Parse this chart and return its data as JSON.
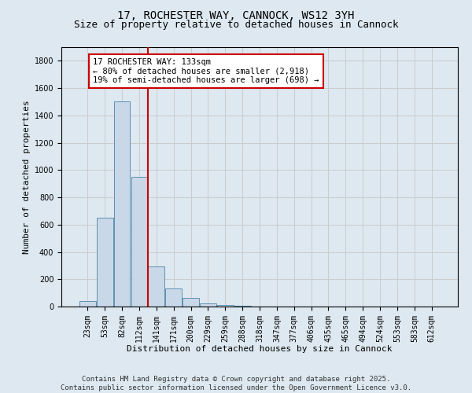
{
  "title_line1": "17, ROCHESTER WAY, CANNOCK, WS12 3YH",
  "title_line2": "Size of property relative to detached houses in Cannock",
  "xlabel": "Distribution of detached houses by size in Cannock",
  "ylabel": "Number of detached properties",
  "categories": [
    "23sqm",
    "53sqm",
    "82sqm",
    "112sqm",
    "141sqm",
    "171sqm",
    "200sqm",
    "229sqm",
    "259sqm",
    "288sqm",
    "318sqm",
    "347sqm",
    "377sqm",
    "406sqm",
    "435sqm",
    "465sqm",
    "494sqm",
    "524sqm",
    "553sqm",
    "583sqm",
    "612sqm"
  ],
  "values": [
    40,
    650,
    1500,
    950,
    295,
    130,
    65,
    25,
    10,
    5,
    0,
    0,
    0,
    0,
    0,
    0,
    0,
    0,
    0,
    0,
    0
  ],
  "bar_color": "#c8d8e8",
  "bar_edgecolor": "#6090b0",
  "vline_color": "#cc0000",
  "annotation_text": "17 ROCHESTER WAY: 133sqm\n← 80% of detached houses are smaller (2,918)\n19% of semi-detached houses are larger (698) →",
  "annotation_box_color": "#ffffff",
  "annotation_box_edgecolor": "#cc0000",
  "ylim": [
    0,
    1900
  ],
  "yticks": [
    0,
    200,
    400,
    600,
    800,
    1000,
    1200,
    1400,
    1600,
    1800
  ],
  "grid_color": "#cccccc",
  "background_color": "#dde8f0",
  "footer_line1": "Contains HM Land Registry data © Crown copyright and database right 2025.",
  "footer_line2": "Contains public sector information licensed under the Open Government Licence v3.0.",
  "title_fontsize": 10,
  "subtitle_fontsize": 9,
  "axis_label_fontsize": 8,
  "tick_fontsize": 7,
  "annotation_fontsize": 7.5,
  "footer_fontsize": 6.5
}
